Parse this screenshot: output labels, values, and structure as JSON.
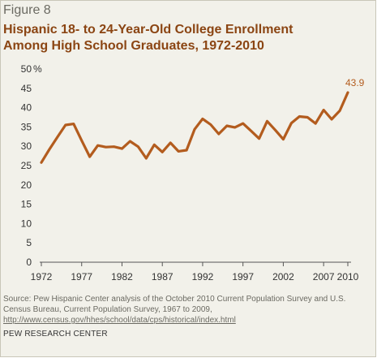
{
  "figure_label": "Figure 8",
  "title_line1": "Hispanic 18- to 24-Year-Old College Enrollment",
  "title_line2": "Among High School Graduates, 1972-2010",
  "source_text": "Source: Pew Hispanic Center analysis of the October 2010 Current Population Survey and U.S. Census Bureau, Current Population Survey, 1967 to 2009,",
  "source_url": "http://www.census.gov/hhes/school/data/cps/historical/index.html",
  "org_name": "PEW RESEARCH CENTER",
  "line_color": "#b35c1e",
  "chart_data": {
    "type": "line",
    "title": "Hispanic 18- to 24-Year-Old College Enrollment Among High School Graduates, 1972-2010",
    "xlabel": "",
    "ylabel": "",
    "y_unit": "%",
    "ylim": [
      0,
      50
    ],
    "y_ticks": [
      0,
      5,
      10,
      15,
      20,
      25,
      30,
      35,
      40,
      45,
      50
    ],
    "x_ticks": [
      1972,
      1977,
      1982,
      1987,
      1992,
      1997,
      2002,
      2007,
      2010
    ],
    "grid": false,
    "series": [
      {
        "x": [
          1972,
          1973,
          1974,
          1975,
          1976,
          1977,
          1978,
          1979,
          1980,
          1981,
          1982,
          1983,
          1984,
          1985,
          1986,
          1987,
          1988,
          1989,
          1990,
          1991,
          1992,
          1993,
          1994,
          1995,
          1996,
          1997,
          1998,
          1999,
          2000,
          2001,
          2002,
          2003,
          2004,
          2005,
          2006,
          2007,
          2008,
          2009,
          2010
        ],
        "values": [
          25.8,
          29.2,
          32.4,
          35.5,
          35.8,
          31.5,
          27.3,
          30.2,
          29.8,
          29.9,
          29.4,
          31.3,
          29.9,
          26.9,
          30.4,
          28.5,
          30.9,
          28.7,
          29.0,
          34.4,
          37.1,
          35.6,
          33.2,
          35.3,
          34.9,
          35.9,
          34.0,
          32.0,
          36.5,
          34.2,
          31.8,
          36.0,
          37.7,
          37.5,
          35.9,
          39.4,
          37.0,
          39.2,
          43.9
        ],
        "end_label": "43.9"
      }
    ]
  }
}
